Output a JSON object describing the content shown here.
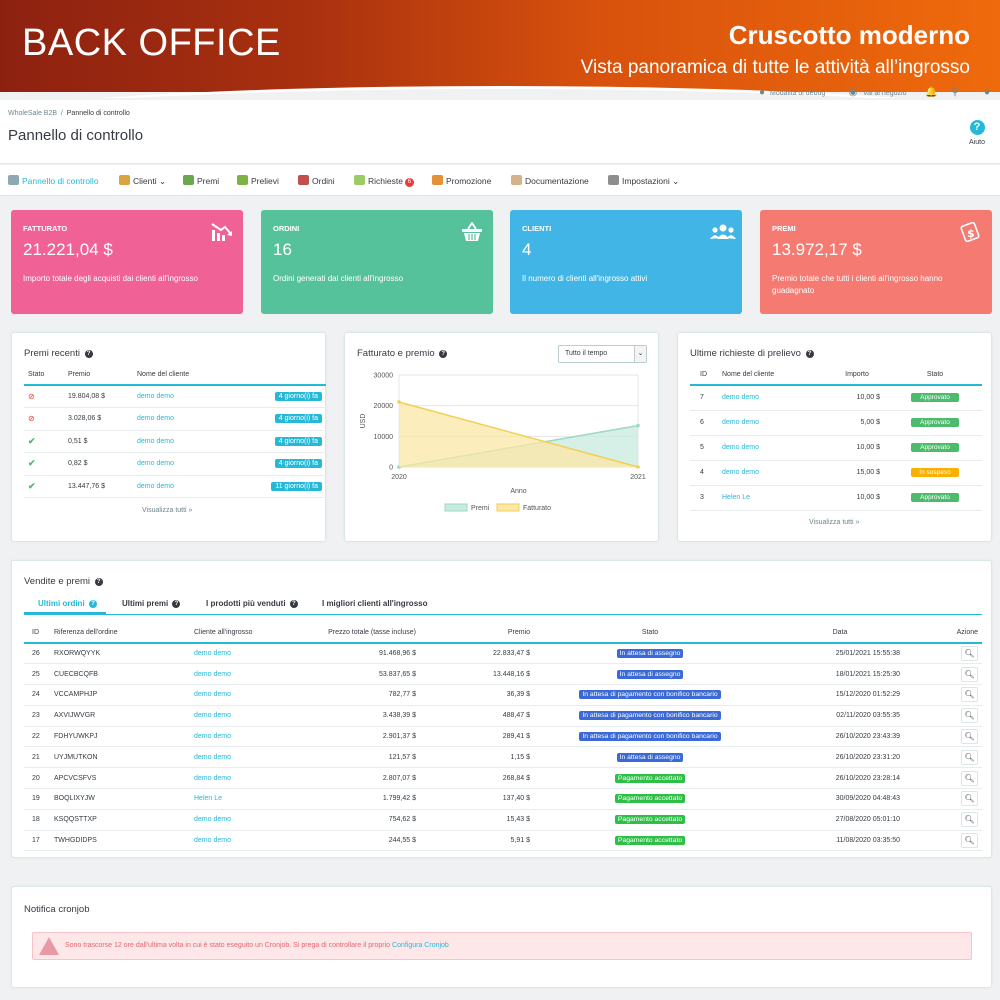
{
  "banner": {
    "left_label": "BACK OFFICE",
    "title": "Cruscotto moderno",
    "subtitle": "Vista panoramica di tutte le attività all’ingrosso"
  },
  "topbar": {
    "debug_label": "Modalità di debug",
    "shop_label": "Vai al negozio"
  },
  "header": {
    "breadcrumb_parent": "WholeSale B2B",
    "breadcrumb_sep": "/",
    "breadcrumb_current": "Pannello di controllo",
    "title": "Pannello di controllo",
    "help_label": "Aiuto",
    "help_glyph": "?"
  },
  "nav": [
    {
      "label": "Pannello di controllo",
      "icon": "dashboard-icon",
      "color": "#8fa9b3",
      "active": true
    },
    {
      "label": "Clienti ⌄",
      "icon": "customers-icon",
      "color": "#d9a441"
    },
    {
      "label": "Premi",
      "icon": "rewards-icon",
      "color": "#6aa84f"
    },
    {
      "label": "Prelievi",
      "icon": "withdrawals-icon",
      "color": "#7cb342"
    },
    {
      "label": "Ordini",
      "icon": "orders-icon",
      "color": "#c0504d"
    },
    {
      "label": "Richieste",
      "icon": "requests-icon",
      "color": "#9ccc65",
      "badge": "6"
    },
    {
      "label": "Promozione",
      "icon": "promotion-icon",
      "color": "#e69138"
    },
    {
      "label": "Documentazione",
      "icon": "documentation-icon",
      "color": "#d5b38a"
    },
    {
      "label": "Impostazioni ⌄",
      "icon": "settings-icon",
      "color": "#8e8e8e"
    }
  ],
  "kpis": [
    {
      "title": "FATTURATO",
      "value": "21.221,04 $",
      "desc": "Importo totale degli acquisti dai clienti all'ingrosso",
      "color": "#f06195",
      "icon": "chart-down-icon",
      "glyph": "📉"
    },
    {
      "title": "ORDINI",
      "value": "16",
      "desc": "Ordini generati dai clienti all'ingrosso",
      "color": "#56c29c",
      "icon": "basket-icon",
      "glyph": "🧺"
    },
    {
      "title": "CLIENTI",
      "value": "4",
      "desc": "Il numero di clienti all'ingrosso attivi",
      "color": "#41b6e6",
      "icon": "users-icon",
      "glyph": "👥"
    },
    {
      "title": "PREMI",
      "value": "13.972,17 $",
      "desc": "Premio totale che tutti i clienti all'ingrosso hanno guadagnato",
      "color": "#f47a72",
      "icon": "money-icon",
      "glyph": "💲"
    }
  ],
  "recent_rewards": {
    "title": "Premi recenti",
    "columns": [
      "Stato",
      "Premio",
      "Nome del cliente",
      ""
    ],
    "rows": [
      {
        "status": "pending",
        "amount": "19.804,08 $",
        "customer": "demo demo",
        "age": "4 giorno(i) fa"
      },
      {
        "status": "pending",
        "amount": "3.028,06 $",
        "customer": "demo demo",
        "age": "4 giorno(i) fa"
      },
      {
        "status": "ok",
        "amount": "0,51 $",
        "customer": "demo demo",
        "age": "4 giorno(i) fa"
      },
      {
        "status": "ok",
        "amount": "0,82 $",
        "customer": "demo demo",
        "age": "4 giorno(i) fa"
      },
      {
        "status": "ok",
        "amount": "13.447,76 $",
        "customer": "demo demo",
        "age": "11 giorno(i) fa"
      }
    ],
    "see_all": "Visualizza tutti »"
  },
  "revenue_chart": {
    "title": "Fatturato e premio",
    "select_value": "Tutto il tempo"
  },
  "chart_data": {
    "type": "area",
    "x": [
      "2020",
      "2021"
    ],
    "xlabel": "Anno",
    "ylabel": "USD",
    "ylim": [
      0,
      30000
    ],
    "yticks": [
      "0",
      "10000",
      "20000",
      "30000"
    ],
    "grid": true,
    "legend_position": "bottom",
    "series": [
      {
        "name": "Premi",
        "values": [
          0,
          13500
        ],
        "color": "#c8ebe0"
      },
      {
        "name": "Fatturato",
        "values": [
          21200,
          0
        ],
        "color": "#fbe7a6"
      }
    ]
  },
  "withdrawals": {
    "title": "Ultime richieste di prelievo",
    "columns": [
      "ID",
      "Nome del cliente",
      "Importo",
      "Stato"
    ],
    "rows": [
      {
        "id": "7",
        "customer": "demo demo",
        "amount": "10,00 $",
        "status": "Approvato",
        "type": "green"
      },
      {
        "id": "6",
        "customer": "demo demo",
        "amount": "5,00 $",
        "status": "Approvato",
        "type": "green"
      },
      {
        "id": "5",
        "customer": "demo demo",
        "amount": "10,00 $",
        "status": "Approvato",
        "type": "green"
      },
      {
        "id": "4",
        "customer": "demo demo",
        "amount": "15,00 $",
        "status": "In sospeso",
        "type": "orange"
      },
      {
        "id": "3",
        "customer": "Helen Le",
        "amount": "10,00 $",
        "status": "Approvato",
        "type": "green"
      }
    ],
    "see_all": "Visualizza tutti »"
  },
  "sales": {
    "title": "Vendite e premi",
    "tabs": [
      "Ultimi ordini",
      "Ultimi premi",
      "I prodotti più venduti",
      "I migliori clienti all'ingrosso"
    ],
    "columns": [
      "ID",
      "Riferenza dell'ordine",
      "Cliente all'ingrosso",
      "Prezzo totale (tasse incluse)",
      "Premio",
      "Stato",
      "Data",
      "Azione"
    ],
    "rows": [
      {
        "id": "26",
        "ref": "RXORWQYYK",
        "customer": "demo demo",
        "total": "91.468,96 $",
        "reward": "22.833,47 $",
        "status": "In attesa di assegno",
        "color": "#3b6ad6",
        "date": "25/01/2021 15:55:38"
      },
      {
        "id": "25",
        "ref": "CUECBCQFB",
        "customer": "demo demo",
        "total": "53.837,65 $",
        "reward": "13.448,16 $",
        "status": "In attesa di assegno",
        "color": "#3b6ad6",
        "date": "18/01/2021 15:25:30"
      },
      {
        "id": "24",
        "ref": "VCCAMPHJP",
        "customer": "demo demo",
        "total": "782,77 $",
        "reward": "36,39 $",
        "status": "In attesa di pagamento con bonifico bancario",
        "color": "#3b6ad6",
        "date": "15/12/2020 01:52:29"
      },
      {
        "id": "23",
        "ref": "AXVIJWVGR",
        "customer": "demo demo",
        "total": "3.438,39 $",
        "reward": "488,47 $",
        "status": "In attesa di pagamento con bonifico bancario",
        "color": "#3b6ad6",
        "date": "02/11/2020 03:55:35"
      },
      {
        "id": "22",
        "ref": "FDHYUWKPJ",
        "customer": "demo demo",
        "total": "2.901,37 $",
        "reward": "289,41 $",
        "status": "In attesa di pagamento con bonifico bancario",
        "color": "#3b6ad6",
        "date": "26/10/2020 23:43:39"
      },
      {
        "id": "21",
        "ref": "UYJMUTKON",
        "customer": "demo demo",
        "total": "121,57 $",
        "reward": "1,15 $",
        "status": "In attesa di assegno",
        "color": "#3b6ad6",
        "date": "26/10/2020 23:31:20"
      },
      {
        "id": "20",
        "ref": "APCVCSFVS",
        "customer": "demo demo",
        "total": "2.807,07 $",
        "reward": "268,84 $",
        "status": "Pagamento accettato",
        "color": "#2fbf47",
        "date": "26/10/2020 23:28:14"
      },
      {
        "id": "19",
        "ref": "BOQLIXYJW",
        "customer": "Helen Le",
        "total": "1.799,42 $",
        "reward": "137,40 $",
        "status": "Pagamento accettato",
        "color": "#2fbf47",
        "date": "30/09/2020 04:48:43"
      },
      {
        "id": "18",
        "ref": "KSQQSTTXP",
        "customer": "demo demo",
        "total": "754,62 $",
        "reward": "15,43 $",
        "status": "Pagamento accettato",
        "color": "#2fbf47",
        "date": "27/08/2020 05:01:10"
      },
      {
        "id": "17",
        "ref": "TWHGDIDPS",
        "customer": "demo demo",
        "total": "244,55 $",
        "reward": "5,91 $",
        "status": "Pagamento accettato",
        "color": "#2fbf47",
        "date": "11/08/2020 03:35:50"
      }
    ]
  },
  "cron": {
    "title": "Notifica cronjob",
    "message": "Sono trascorse 12 ore dall'ultima volta in cui è stato eseguito un Cronjob. Si prega di controllare il proprio ",
    "link": "Configura Cronjob"
  }
}
